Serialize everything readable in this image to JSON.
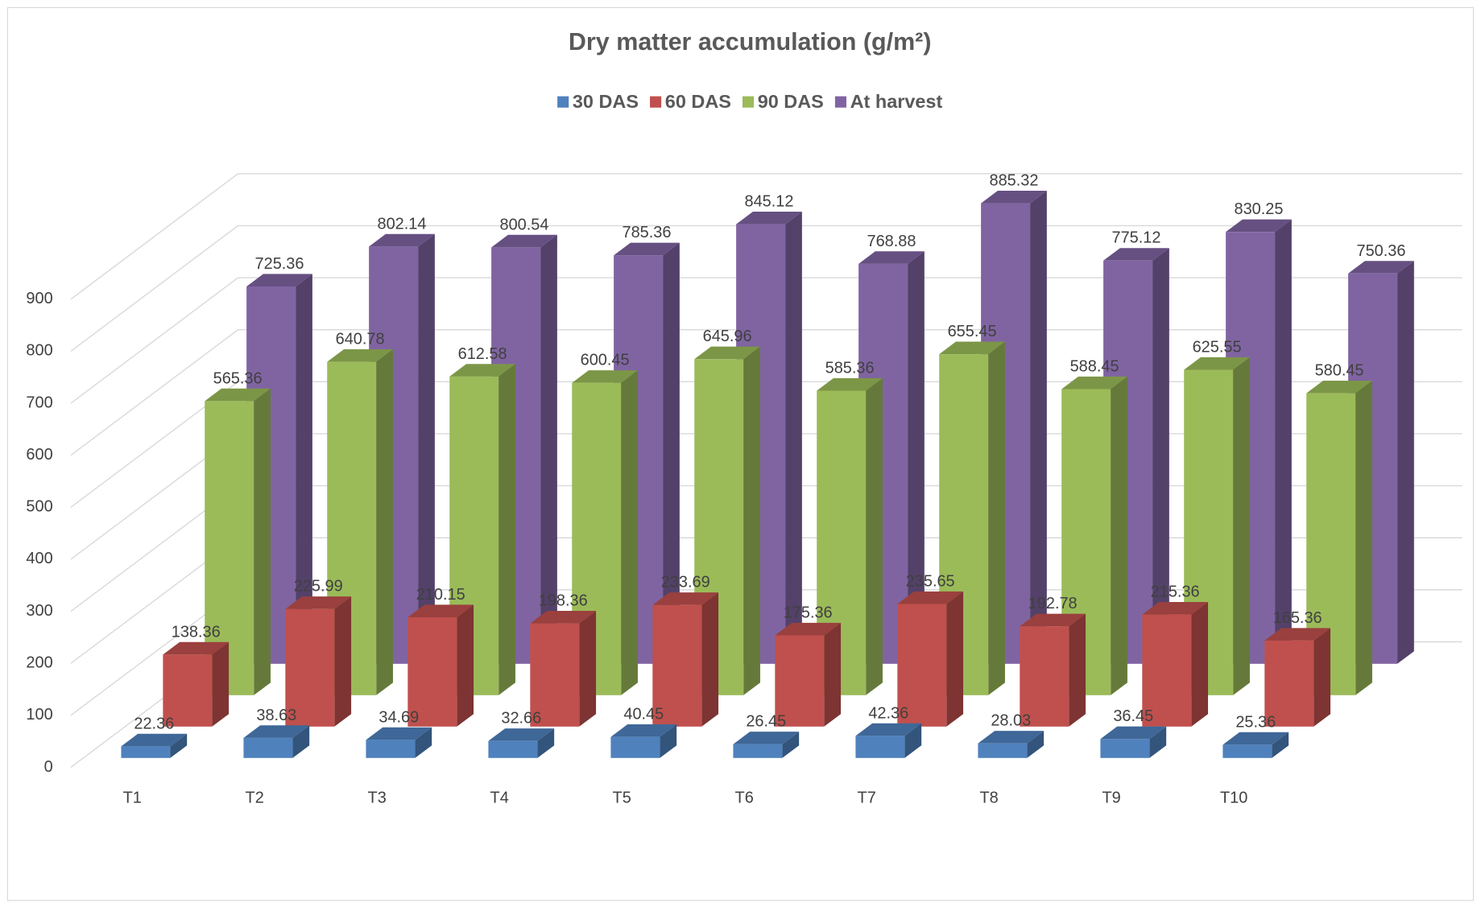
{
  "chart_data": {
    "type": "bar3d",
    "title": "Dry matter accumulation (g/m²)",
    "categories": [
      "T1",
      "T2",
      "T3",
      "T4",
      "T5",
      "T6",
      "T7",
      "T8",
      "T9",
      "T10"
    ],
    "series": [
      {
        "name": "30 DAS",
        "color": "#4f81bd",
        "values": [
          22.36,
          38.63,
          34.69,
          32.66,
          40.45,
          26.45,
          42.36,
          28.03,
          36.45,
          25.36
        ]
      },
      {
        "name": "60 DAS",
        "color": "#c0504d",
        "values": [
          138.36,
          225.99,
          210.15,
          198.36,
          233.69,
          175.36,
          235.65,
          192.78,
          215.36,
          165.36
        ]
      },
      {
        "name": "90 DAS",
        "color": "#9bbb59",
        "values": [
          565.36,
          640.78,
          612.58,
          600.45,
          645.96,
          585.36,
          655.45,
          588.45,
          625.55,
          580.45
        ]
      },
      {
        "name": "At harvest",
        "color": "#8064a2",
        "values": [
          725.36,
          802.14,
          800.54,
          785.36,
          845.12,
          768.88,
          885.32,
          775.12,
          830.25,
          750.36
        ]
      }
    ],
    "ylim": [
      0,
      900
    ],
    "yticks": [
      0,
      100,
      200,
      300,
      400,
      500,
      600,
      700,
      800,
      900
    ],
    "grid": true,
    "legend": "top"
  }
}
